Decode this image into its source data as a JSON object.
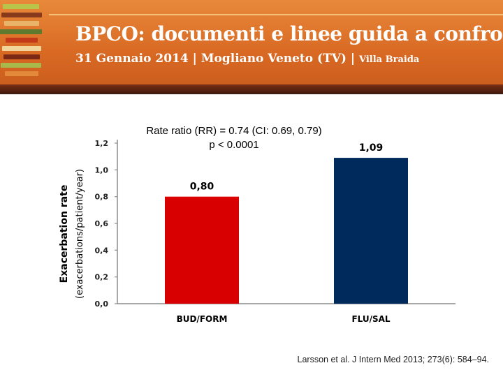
{
  "banner": {
    "title": "BPCO: documenti e linee guida a confronto",
    "date": "31 Gennaio 2014",
    "separator": "|",
    "location": "Mogliano Veneto (TV)",
    "venue": "Villa Braida",
    "colors": {
      "background": "#d96a24",
      "text": "#ffffff"
    }
  },
  "annotation": {
    "line1": "Rate ratio (RR) = 0.74 (CI: 0.69, 0.79)",
    "line2": "p < 0.0001"
  },
  "citation": "Larsson et al. J Intern Med 2013; 273(6): 584–94.",
  "chart_data": {
    "type": "bar",
    "categories": [
      "BUD/FORM",
      "FLU/SAL"
    ],
    "values": [
      0.8,
      1.09
    ],
    "value_labels": [
      "0,80",
      "1,09"
    ],
    "colors": [
      "#d80000",
      "#002a5c"
    ],
    "ylabel_line1": "Exacerbation rate",
    "ylabel_line2": "(exacerbations/patient/year)",
    "yticks": [
      0.0,
      0.2,
      0.4,
      0.6,
      0.8,
      1.0,
      1.2
    ],
    "ytick_labels": [
      "0,0",
      "0,2",
      "0,4",
      "0,6",
      "0,8",
      "1,0",
      "1,2"
    ],
    "ylim": [
      0,
      1.2
    ],
    "grid": false,
    "legend": "none"
  }
}
